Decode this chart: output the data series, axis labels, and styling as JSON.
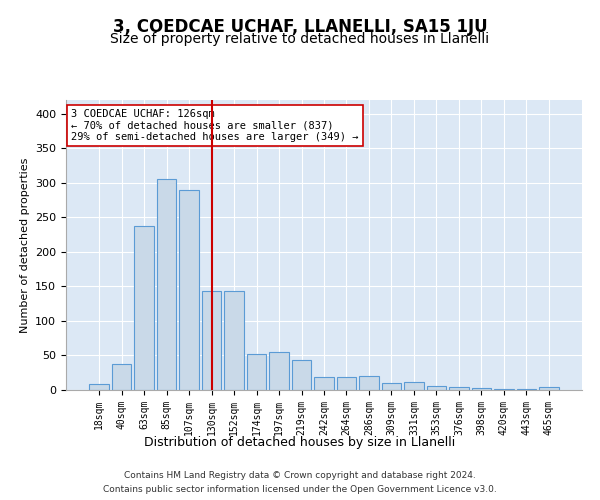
{
  "title": "3, COEDCAE UCHAF, LLANELLI, SA15 1JU",
  "subtitle": "Size of property relative to detached houses in Llanelli",
  "xlabel": "Distribution of detached houses by size in Llanelli",
  "ylabel": "Number of detached properties",
  "categories": [
    "18sqm",
    "40sqm",
    "63sqm",
    "85sqm",
    "107sqm",
    "130sqm",
    "152sqm",
    "174sqm",
    "197sqm",
    "219sqm",
    "242sqm",
    "264sqm",
    "286sqm",
    "309sqm",
    "331sqm",
    "353sqm",
    "376sqm",
    "398sqm",
    "420sqm",
    "443sqm",
    "465sqm"
  ],
  "values": [
    8,
    38,
    238,
    305,
    290,
    143,
    143,
    52,
    55,
    44,
    19,
    19,
    20,
    10,
    11,
    6,
    4,
    3,
    2,
    1,
    4
  ],
  "bar_color": "#c9d9e8",
  "bar_edge_color": "#5b9bd5",
  "vline_x": 5,
  "vline_color": "#cc0000",
  "annotation_text": "3 COEDCAE UCHAF: 126sqm\n← 70% of detached houses are smaller (837)\n29% of semi-detached houses are larger (349) →",
  "annotation_box_color": "#ffffff",
  "annotation_box_edge": "#cc0000",
  "footer1": "Contains HM Land Registry data © Crown copyright and database right 2024.",
  "footer2": "Contains public sector information licensed under the Open Government Licence v3.0.",
  "background_color": "#dce8f5",
  "ylim": [
    0,
    420
  ],
  "title_fontsize": 12,
  "subtitle_fontsize": 10
}
